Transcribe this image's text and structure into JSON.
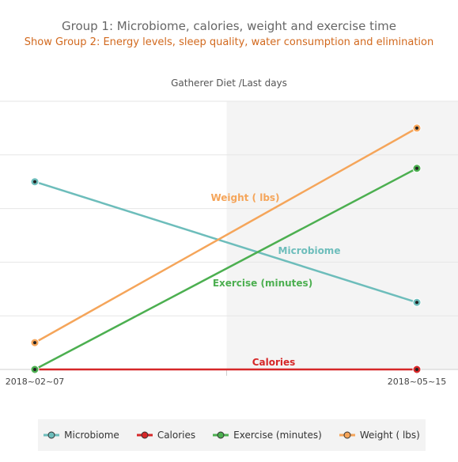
{
  "header": {
    "group1_title": "Group 1: Microbiome, calories, weight and exercise time",
    "group2_link": "Show Group 2: Energy levels, sleep quality, water consumption and elimination"
  },
  "chart_data": {
    "type": "line",
    "title": "Gatherer Diet /Last days",
    "x": [
      "2018~02~07",
      "2018~05~15"
    ],
    "ylim": [
      0,
      100
    ],
    "grid": true,
    "shaded_region": {
      "x_start_fraction": 0.5,
      "color": "#f4f4f4"
    },
    "legend_position": "bottom",
    "series": [
      {
        "name": "Microbiome",
        "color": "#6dbdbb",
        "values": [
          70,
          25
        ]
      },
      {
        "name": "Calories",
        "color": "#d62728",
        "values": [
          0,
          0
        ]
      },
      {
        "name": "Exercise (minutes)",
        "color": "#4caf50",
        "values": [
          0,
          75
        ]
      },
      {
        "name": "Weight ( lbs)",
        "color": "#f5a55a",
        "values": [
          10,
          90
        ]
      }
    ],
    "labels": [
      {
        "text": "Weight ( lbs)",
        "series": "Weight ( lbs)"
      },
      {
        "text": "Microbiome",
        "series": "Microbiome"
      },
      {
        "text": "Exercise (minutes)",
        "series": "Exercise (minutes)"
      },
      {
        "text": "Calories",
        "series": "Calories"
      }
    ]
  },
  "legend": {
    "items": [
      {
        "label": "Microbiome",
        "icon": "line-dot-icon"
      },
      {
        "label": "Calories",
        "icon": "line-dot-icon"
      },
      {
        "label": "Exercise (minutes)",
        "icon": "line-dot-icon"
      },
      {
        "label": "Weight ( lbs)",
        "icon": "line-dot-icon"
      }
    ]
  }
}
